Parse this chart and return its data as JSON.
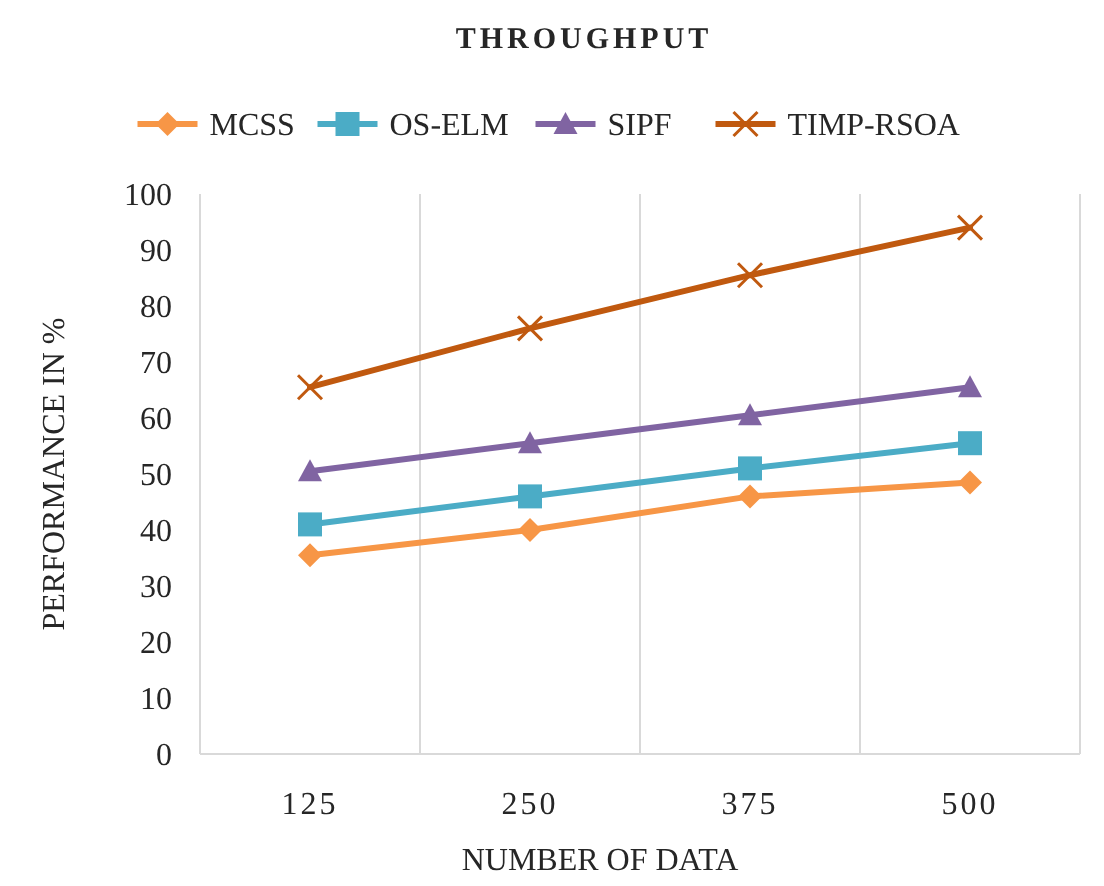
{
  "chart_data": {
    "type": "line",
    "title": "THROUGHPUT",
    "xlabel": "NUMBER OF DATA",
    "ylabel": "PERFORMANCE IN %",
    "categories": [
      "125",
      "250",
      "375",
      "500"
    ],
    "ylim": [
      0,
      100
    ],
    "yticks": [
      0,
      10,
      20,
      30,
      40,
      50,
      60,
      70,
      80,
      90,
      100
    ],
    "grid": "x",
    "legend": "top",
    "series": [
      {
        "name": "MCSS",
        "color": "#f79646",
        "marker": "diamond",
        "values": [
          35.5,
          40,
          46,
          48.5
        ]
      },
      {
        "name": "OS-ELM",
        "color": "#4bacc6",
        "marker": "square",
        "values": [
          41,
          46,
          51,
          55.5
        ]
      },
      {
        "name": "SIPF",
        "color": "#8064a2",
        "marker": "triangle",
        "values": [
          50.5,
          55.5,
          60.5,
          65.5
        ]
      },
      {
        "name": "TIMP-RSOA",
        "color": "#c0590f",
        "marker": "cross",
        "values": [
          65.5,
          76,
          85.5,
          94
        ]
      }
    ]
  }
}
